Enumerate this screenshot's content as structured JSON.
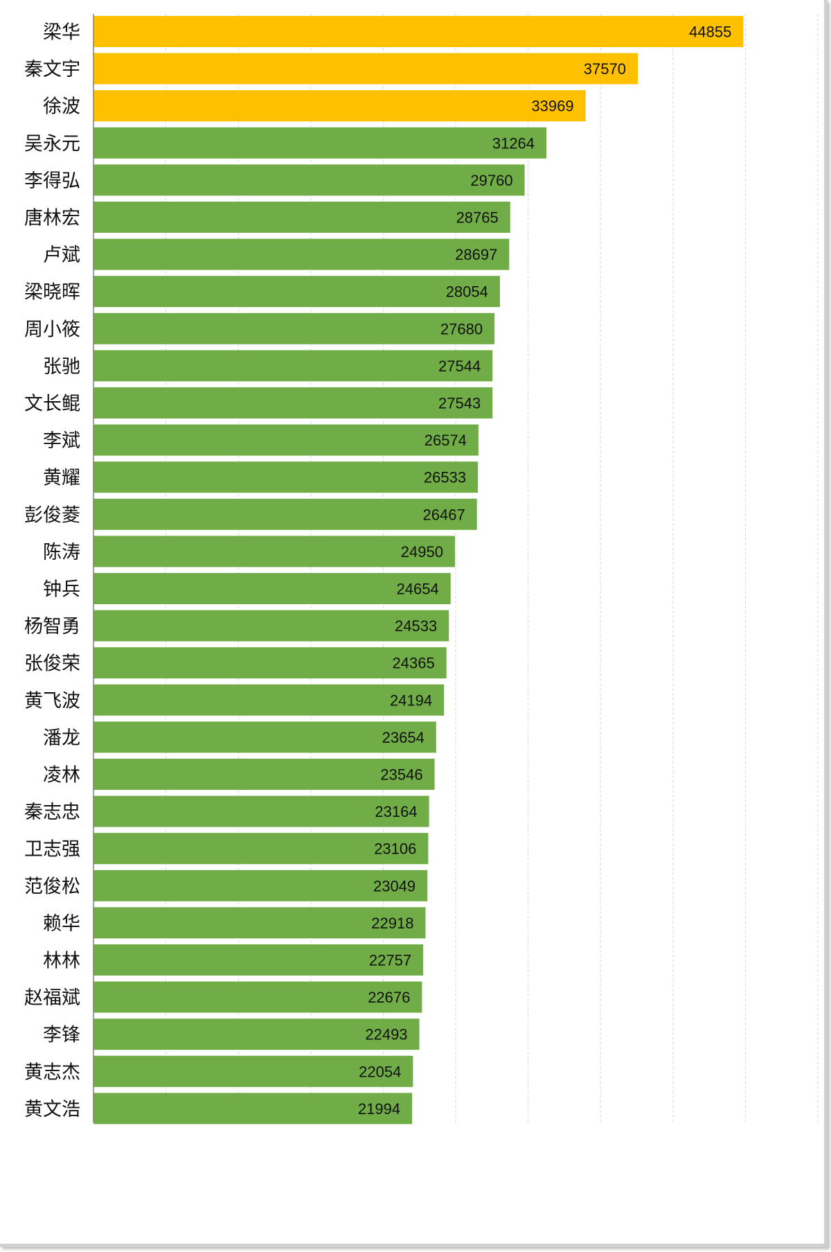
{
  "chart_data": {
    "type": "bar",
    "orientation": "horizontal",
    "categories": [
      "梁华",
      "秦文宇",
      "徐波",
      "吴永元",
      "李得弘",
      "唐林宏",
      "卢斌",
      "梁晓晖",
      "周小筱",
      "张驰",
      "文长鲲",
      "李斌",
      "黄耀",
      "彭俊菱",
      "陈涛",
      "钟兵",
      "杨智勇",
      "张俊荣",
      "黄飞波",
      "潘龙",
      "凌林",
      "秦志忠",
      "卫志强",
      "范俊松",
      "赖华",
      "林林",
      "赵福斌",
      "李锋",
      "黄志杰",
      "黄文浩"
    ],
    "values": [
      44855,
      37570,
      33969,
      31264,
      29760,
      28765,
      28697,
      28054,
      27680,
      27544,
      27543,
      26574,
      26533,
      26467,
      24950,
      24654,
      24533,
      24365,
      24194,
      23654,
      23546,
      23164,
      23106,
      23049,
      22918,
      22757,
      22676,
      22493,
      22054,
      21994
    ],
    "value_labels": [
      "44855",
      "37570",
      "33969",
      "31264",
      "29760",
      "28765",
      "28697",
      "28054",
      "27680",
      "27544",
      "27543",
      "26574",
      "26533",
      "26467",
      "24950",
      "24654",
      "24533",
      "24365",
      "24194",
      "23654",
      "23546",
      "23164",
      "23106",
      "23049",
      "22918",
      "22757",
      "22676",
      "22493",
      "22054",
      "21994"
    ],
    "highlight_count": 3,
    "colors": {
      "highlight": "#FFC000",
      "default": "#70AD47"
    },
    "xlim": [
      0,
      50000
    ],
    "grid": true,
    "grid_step": 5000,
    "title": "",
    "xlabel": "",
    "ylabel": "",
    "legend": "none"
  }
}
